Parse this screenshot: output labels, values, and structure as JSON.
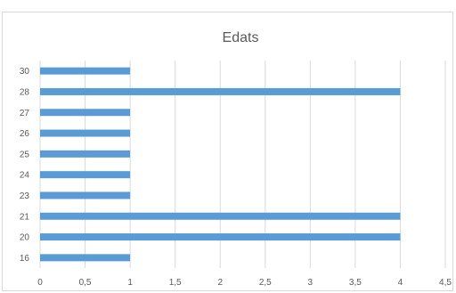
{
  "chart_data": {
    "type": "bar",
    "orientation": "horizontal",
    "title": "Edats",
    "categories": [
      "30",
      "28",
      "27",
      "26",
      "25",
      "24",
      "23",
      "21",
      "20",
      "16"
    ],
    "values": [
      1,
      4,
      1,
      1,
      1,
      1,
      1,
      4,
      4,
      1
    ],
    "xlim": [
      0,
      4.5
    ],
    "x_ticks": [
      "0",
      "0,5",
      "1",
      "1,5",
      "2",
      "2,5",
      "3",
      "3,5",
      "4",
      "4,5"
    ],
    "grid": "vertical",
    "legend": "none",
    "bar_color": "#5b9bd5",
    "grid_color": "#d9d9d9",
    "text_color": "#595959"
  }
}
